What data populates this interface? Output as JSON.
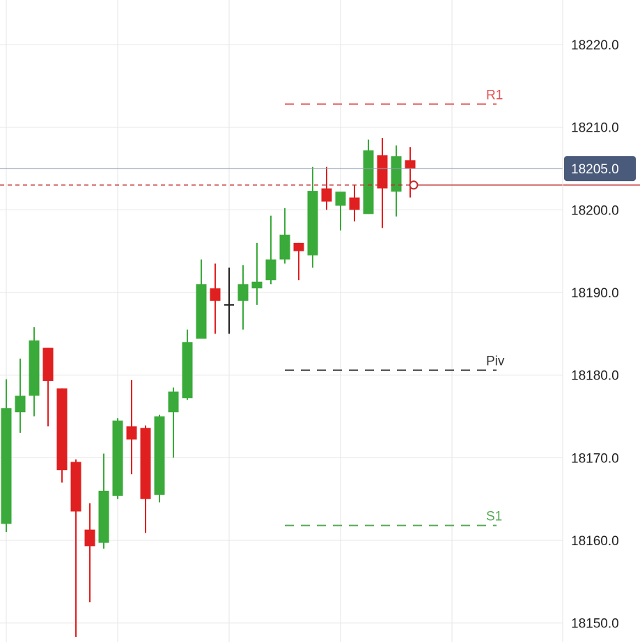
{
  "chart_data": {
    "type": "candlestick",
    "colors": {
      "up": "#3aaa3a",
      "down": "#e02020",
      "neutral": "#222222",
      "grid": "#e6e6e6",
      "last_price_tag": "#4a5a7a",
      "last_price_line": "#8e9cb0",
      "red_level": "#c0282a"
    },
    "y_axis": {
      "ticks": [
        18150.0,
        18160.0,
        18170.0,
        18180.0,
        18190.0,
        18200.0,
        18210.0,
        18220.0
      ],
      "tick_labels": [
        "18150.0",
        "18160.0",
        "18170.0",
        "18180.0",
        "18190.0",
        "18200.0",
        "18210.0",
        "18220.0"
      ],
      "range": [
        18147.7,
        18225.4
      ],
      "position": "right"
    },
    "candles": [
      {
        "open": 18162.0,
        "high": 18179.5,
        "low": 18161.0,
        "close": 18176.0
      },
      {
        "open": 18175.5,
        "high": 18182.0,
        "low": 18173.0,
        "close": 18177.5
      },
      {
        "open": 18177.5,
        "high": 18185.8,
        "low": 18175.0,
        "close": 18184.2
      },
      {
        "open": 18183.3,
        "high": 18183.3,
        "low": 18173.8,
        "close": 18179.3
      },
      {
        "open": 18178.4,
        "high": 18178.4,
        "low": 18167.0,
        "close": 18168.5
      },
      {
        "open": 18169.5,
        "high": 18169.8,
        "low": 18148.3,
        "close": 18163.5
      },
      {
        "open": 18161.3,
        "high": 18164.5,
        "low": 18152.5,
        "close": 18159.3
      },
      {
        "open": 18159.7,
        "high": 18170.5,
        "low": 18159.0,
        "close": 18166.0
      },
      {
        "open": 18165.4,
        "high": 18174.8,
        "low": 18165.0,
        "close": 18174.5
      },
      {
        "open": 18173.8,
        "high": 18179.4,
        "low": 18168.0,
        "close": 18172.2
      },
      {
        "open": 18173.6,
        "high": 18173.9,
        "low": 18160.9,
        "close": 18165.0
      },
      {
        "open": 18165.5,
        "high": 18175.2,
        "low": 18164.6,
        "close": 18175.0
      },
      {
        "open": 18175.5,
        "high": 18178.5,
        "low": 18170.0,
        "close": 18178.0
      },
      {
        "open": 18177.2,
        "high": 18185.5,
        "low": 18177.0,
        "close": 18184.0
      },
      {
        "open": 18184.4,
        "high": 18194.0,
        "low": 18184.4,
        "close": 18191.0
      },
      {
        "open": 18190.5,
        "high": 18193.5,
        "low": 18185.0,
        "close": 18189.0
      },
      {
        "open": 18188.5,
        "high": 18193.0,
        "low": 18185.0,
        "close": 18188.5
      },
      {
        "open": 18189.0,
        "high": 18193.3,
        "low": 18185.5,
        "close": 18191.0
      },
      {
        "open": 18190.5,
        "high": 18196.0,
        "low": 18188.5,
        "close": 18191.3
      },
      {
        "open": 18191.5,
        "high": 18199.3,
        "low": 18191.0,
        "close": 18194.0
      },
      {
        "open": 18194.0,
        "high": 18200.2,
        "low": 18193.5,
        "close": 18197.0
      },
      {
        "open": 18196.0,
        "high": 18196.0,
        "low": 18191.5,
        "close": 18195.0
      },
      {
        "open": 18194.5,
        "high": 18205.2,
        "low": 18193.0,
        "close": 18202.3
      },
      {
        "open": 18202.6,
        "high": 18205.2,
        "low": 18200.0,
        "close": 18201.0
      },
      {
        "open": 18200.5,
        "high": 18202.0,
        "low": 18197.5,
        "close": 18202.2
      },
      {
        "open": 18201.5,
        "high": 18203.0,
        "low": 18198.6,
        "close": 18200.0
      },
      {
        "open": 18199.5,
        "high": 18208.5,
        "low": 18199.5,
        "close": 18207.2
      },
      {
        "open": 18206.6,
        "high": 18208.7,
        "low": 18197.8,
        "close": 18202.6
      },
      {
        "open": 18202.2,
        "high": 18207.8,
        "low": 18199.2,
        "close": 18206.5
      },
      {
        "open": 18206.0,
        "high": 18207.6,
        "low": 18201.5,
        "close": 18205.0
      }
    ],
    "last_price": {
      "value": 18205.0,
      "label": "18205.0"
    },
    "levels": [
      {
        "name": "R1",
        "label": "R1",
        "value": 18212.8,
        "color": "#e05555"
      },
      {
        "name": "Piv",
        "label": "Piv",
        "value": 18180.6,
        "color": "#333333"
      },
      {
        "name": "S1",
        "label": "S1",
        "value": 18161.8,
        "color": "#55aa55"
      }
    ],
    "order_level": {
      "value": 18203.0
    },
    "grid": true,
    "legend": "none"
  }
}
